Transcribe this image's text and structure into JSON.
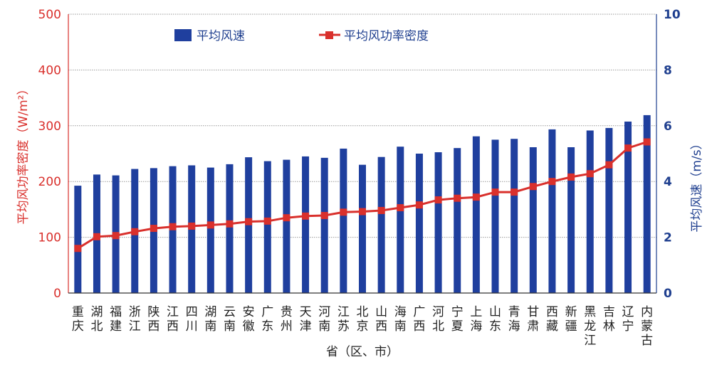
{
  "colors": {
    "bar": "#1f3f9e",
    "line": "#d9302c",
    "left_axis": "#d9302c",
    "right_axis": "#1f3f8f",
    "grid": "#9a9a9a"
  },
  "chart_data": {
    "type": "bar",
    "categories": [
      [
        "重",
        "庆"
      ],
      [
        "湖",
        "北"
      ],
      [
        "福",
        "建"
      ],
      [
        "浙",
        "江"
      ],
      [
        "陕",
        "西"
      ],
      [
        "江",
        "西"
      ],
      [
        "四",
        "川"
      ],
      [
        "湖",
        "南"
      ],
      [
        "云",
        "南"
      ],
      [
        "安",
        "徽"
      ],
      [
        "广",
        "东"
      ],
      [
        "贵",
        "州"
      ],
      [
        "天",
        "津"
      ],
      [
        "河",
        "南"
      ],
      [
        "江",
        "苏"
      ],
      [
        "北",
        "京"
      ],
      [
        "山",
        "西"
      ],
      [
        "海",
        "南"
      ],
      [
        "广",
        "西"
      ],
      [
        "河",
        "北"
      ],
      [
        "宁",
        "夏"
      ],
      [
        "上",
        "海"
      ],
      [
        "山",
        "东"
      ],
      [
        "青",
        "海"
      ],
      [
        "甘",
        "肃"
      ],
      [
        "西",
        "藏"
      ],
      [
        "新",
        "疆"
      ],
      [
        "黑",
        "龙",
        "江"
      ],
      [
        "吉",
        "林"
      ],
      [
        "辽",
        "宁"
      ],
      [
        "内",
        "蒙",
        "古"
      ]
    ],
    "series": [
      {
        "name": "平均风速",
        "type": "bar",
        "axis": "right",
        "values": [
          3.85,
          4.25,
          4.22,
          4.45,
          4.48,
          4.55,
          4.58,
          4.5,
          4.62,
          4.87,
          4.73,
          4.78,
          4.9,
          4.85,
          5.18,
          4.6,
          4.88,
          5.25,
          5.0,
          5.05,
          5.2,
          5.62,
          5.5,
          5.53,
          5.23,
          5.87,
          5.23,
          5.83,
          5.92,
          6.15,
          6.38
        ]
      },
      {
        "name": "平均风功率密度",
        "type": "line",
        "axis": "left",
        "values": [
          80,
          101,
          103,
          110,
          116,
          119,
          120,
          122,
          124,
          128,
          129,
          135,
          138,
          139,
          145,
          146,
          148,
          153,
          158,
          167,
          170,
          172,
          181,
          181,
          191,
          200,
          208,
          214,
          230,
          260,
          271
        ]
      }
    ],
    "xlabel": "省（区、市）",
    "ylabel_left": "平均风功率密度（W/m²）",
    "ylabel_right": "平均风速（m/s）",
    "ylim_left": [
      0,
      500
    ],
    "ylim_right": [
      0,
      10
    ],
    "yticks_left": [
      "0",
      "100",
      "200",
      "300",
      "400",
      "500"
    ],
    "yticks_right": [
      "0",
      "2",
      "4",
      "6",
      "8",
      "10"
    ],
    "grid": true,
    "legend_position": "top"
  }
}
